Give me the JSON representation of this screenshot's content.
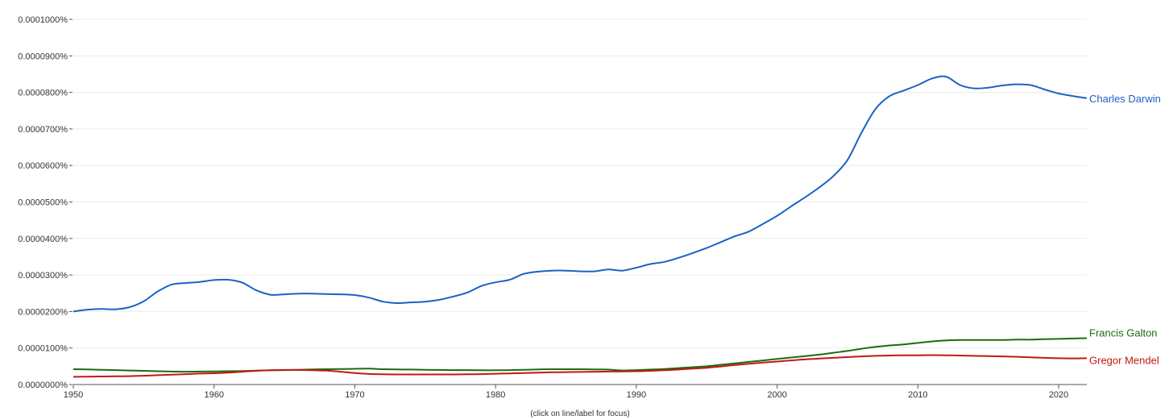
{
  "footnote": "(click on line/label for focus)",
  "chart_data": {
    "type": "line",
    "xlim": [
      1950,
      2022
    ],
    "ylim": [
      0,
      1e-06
    ],
    "x_ticks": [
      "1950",
      "1960",
      "1970",
      "1980",
      "1990",
      "2000",
      "2010",
      "2020"
    ],
    "y_ticks": [
      "0.0000000%",
      "0.0000100%",
      "0.0000200%",
      "0.0000300%",
      "0.0000400%",
      "0.0000500%",
      "0.0000600%",
      "0.0000700%",
      "0.0000800%",
      "0.0000900%",
      "0.0001000%"
    ],
    "grid": true,
    "legend_placement": "right (labels at line ends)",
    "x": [
      1950,
      1951,
      1952,
      1953,
      1954,
      1955,
      1956,
      1957,
      1958,
      1959,
      1960,
      1961,
      1962,
      1963,
      1964,
      1965,
      1966,
      1967,
      1968,
      1969,
      1970,
      1971,
      1972,
      1973,
      1974,
      1975,
      1976,
      1977,
      1978,
      1979,
      1980,
      1981,
      1982,
      1983,
      1984,
      1985,
      1986,
      1987,
      1988,
      1989,
      1990,
      1991,
      1992,
      1993,
      1994,
      1995,
      1996,
      1997,
      1998,
      1999,
      2000,
      2001,
      2002,
      2003,
      2004,
      2005,
      2006,
      2007,
      2008,
      2009,
      2010,
      2011,
      2012,
      2013,
      2014,
      2015,
      2016,
      2017,
      2018,
      2019,
      2020,
      2021,
      2022
    ],
    "series": [
      {
        "name": "Charles Darwin",
        "color": "#1a62c6",
        "values": [
          2e-07,
          2.05e-07,
          2.07e-07,
          2.06e-07,
          2.12e-07,
          2.28e-07,
          2.55e-07,
          2.74e-07,
          2.78e-07,
          2.81e-07,
          2.86e-07,
          2.87e-07,
          2.79e-07,
          2.58e-07,
          2.46e-07,
          2.47e-07,
          2.49e-07,
          2.49e-07,
          2.48e-07,
          2.47e-07,
          2.45e-07,
          2.38e-07,
          2.27e-07,
          2.23e-07,
          2.25e-07,
          2.27e-07,
          2.32e-07,
          2.41e-07,
          2.52e-07,
          2.7e-07,
          2.8e-07,
          2.87e-07,
          3.03e-07,
          3.09e-07,
          3.12e-07,
          3.12e-07,
          3.1e-07,
          3.1e-07,
          3.15e-07,
          3.12e-07,
          3.2e-07,
          3.3e-07,
          3.36e-07,
          3.47e-07,
          3.6e-07,
          3.74e-07,
          3.9e-07,
          4.06e-07,
          4.19e-07,
          4.4e-07,
          4.62e-07,
          4.88e-07,
          5.13e-07,
          5.4e-07,
          5.71e-07,
          6.15e-07,
          6.9e-07,
          7.55e-07,
          7.9e-07,
          8.05e-07,
          8.2e-07,
          8.38e-07,
          8.43e-07,
          8.2e-07,
          8.11e-07,
          8.13e-07,
          8.19e-07,
          8.22e-07,
          8.2e-07,
          8.08e-07,
          7.97e-07,
          7.9e-07,
          7.84e-07
        ]
      },
      {
        "name": "Francis Galton",
        "color": "#1d6b0f",
        "values": [
          4.2e-08,
          4.15e-08,
          4.05e-08,
          3.95e-08,
          3.85e-08,
          3.75e-08,
          3.65e-08,
          3.55e-08,
          3.5e-08,
          3.55e-08,
          3.6e-08,
          3.65e-08,
          3.7e-08,
          3.8e-08,
          3.9e-08,
          3.95e-08,
          4.05e-08,
          4.15e-08,
          4.2e-08,
          4.25e-08,
          4.3e-08,
          4.35e-08,
          4.2e-08,
          4.15e-08,
          4.1e-08,
          4.05e-08,
          4e-08,
          3.95e-08,
          3.95e-08,
          3.9e-08,
          3.9e-08,
          3.95e-08,
          4.05e-08,
          4.15e-08,
          4.2e-08,
          4.2e-08,
          4.2e-08,
          4.15e-08,
          4.1e-08,
          3.85e-08,
          3.95e-08,
          4.1e-08,
          4.25e-08,
          4.5e-08,
          4.75e-08,
          5e-08,
          5.4e-08,
          5.8e-08,
          6.2e-08,
          6.6e-08,
          7e-08,
          7.4e-08,
          7.8e-08,
          8.2e-08,
          8.7e-08,
          9.2e-08,
          9.8e-08,
          1.03e-07,
          1.07e-07,
          1.1e-07,
          1.14e-07,
          1.18e-07,
          1.21e-07,
          1.22e-07,
          1.22e-07,
          1.22e-07,
          1.22e-07,
          1.23e-07,
          1.23e-07,
          1.24e-07,
          1.25e-07,
          1.26e-07,
          1.27e-07
        ]
      },
      {
        "name": "Gregor Mendel",
        "color": "#c1190f",
        "values": [
          2.1e-08,
          2.15e-08,
          2.2e-08,
          2.25e-08,
          2.3e-08,
          2.4e-08,
          2.55e-08,
          2.7e-08,
          2.85e-08,
          3e-08,
          3.1e-08,
          3.25e-08,
          3.5e-08,
          3.75e-08,
          3.9e-08,
          4e-08,
          4e-08,
          3.9e-08,
          3.8e-08,
          3.5e-08,
          3.15e-08,
          2.9e-08,
          2.8e-08,
          2.75e-08,
          2.75e-08,
          2.75e-08,
          2.75e-08,
          2.75e-08,
          2.8e-08,
          2.85e-08,
          2.95e-08,
          3.05e-08,
          3.15e-08,
          3.25e-08,
          3.35e-08,
          3.4e-08,
          3.45e-08,
          3.5e-08,
          3.55e-08,
          3.6e-08,
          3.65e-08,
          3.75e-08,
          3.9e-08,
          4.1e-08,
          4.35e-08,
          4.6e-08,
          4.95e-08,
          5.35e-08,
          5.7e-08,
          6e-08,
          6.3e-08,
          6.6e-08,
          6.9e-08,
          7.1e-08,
          7.3e-08,
          7.5e-08,
          7.7e-08,
          7.85e-08,
          7.95e-08,
          8e-08,
          8e-08,
          8.05e-08,
          8e-08,
          7.95e-08,
          7.85e-08,
          7.8e-08,
          7.7e-08,
          7.6e-08,
          7.45e-08,
          7.3e-08,
          7.2e-08,
          7.15e-08,
          7.2e-08
        ]
      }
    ]
  }
}
